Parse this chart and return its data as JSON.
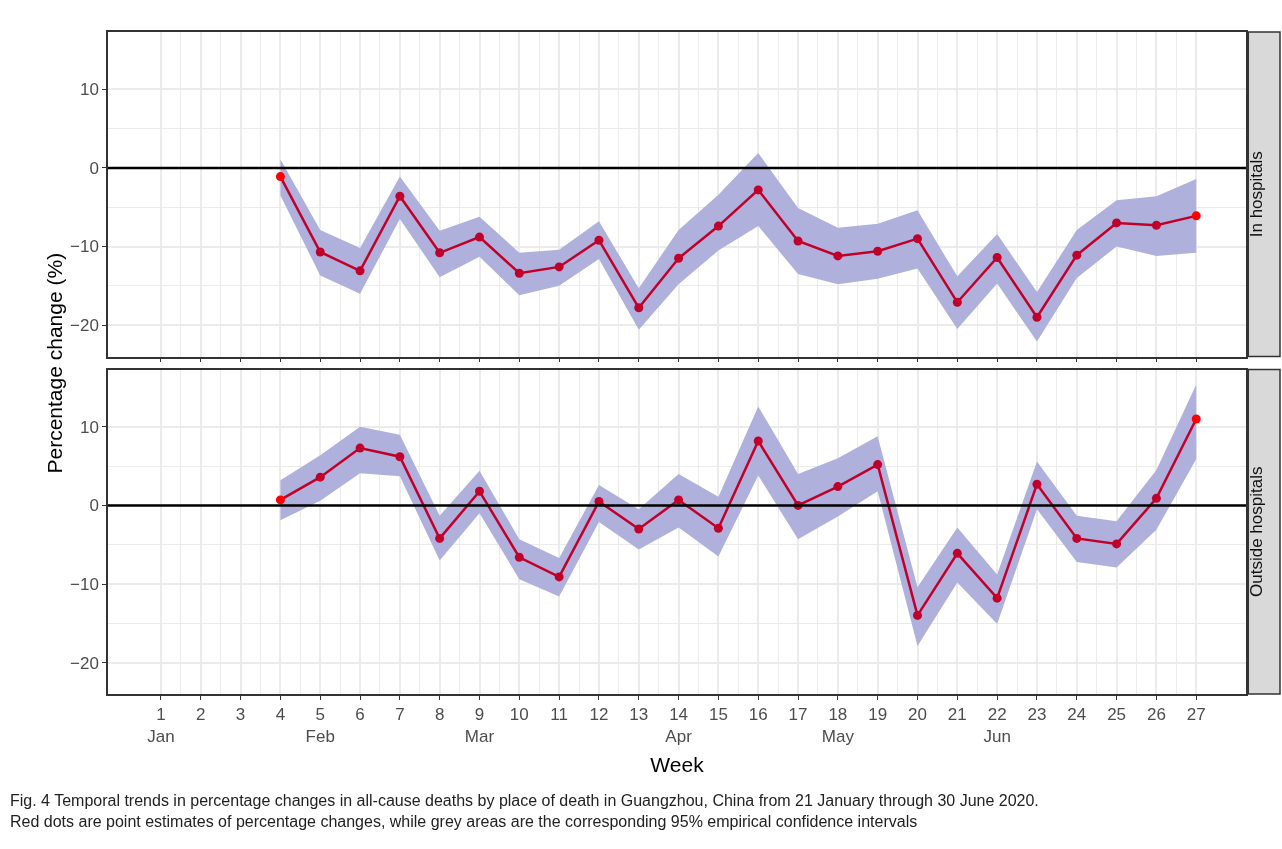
{
  "chart_data": [
    {
      "type": "line",
      "title": "In hospitals",
      "ylabel": "Percentage change (%)",
      "x": [
        4,
        5,
        6,
        7,
        8,
        9,
        10,
        11,
        12,
        13,
        14,
        15,
        16,
        17,
        18,
        19,
        20,
        21,
        22,
        23,
        24,
        25,
        26,
        27
      ],
      "series": [
        {
          "color": "#c0002a",
          "colors": [
            "#ff0000",
            "#c0002a",
            "#c0002a",
            "#c0002a",
            "#c0002a",
            "#c0002a",
            "#c0002a",
            "#c0002a",
            "#c0002a",
            "#c0002a",
            "#c0002a",
            "#c0002a",
            "#c0002a",
            "#c0002a",
            "#c0002a",
            "#c0002a",
            "#c0002a",
            "#c0002a",
            "#c0002a",
            "#c0002a",
            "#c0002a",
            "#c0002a",
            "#c0002a",
            "#ff0000"
          ],
          "values": [
            -1.1,
            -10.7,
            -13.1,
            -3.6,
            -10.8,
            -8.8,
            -13.4,
            -12.6,
            -9.2,
            -17.8,
            -11.5,
            -7.4,
            -2.8,
            -9.3,
            -11.2,
            -10.6,
            -9.0,
            -17.1,
            -11.4,
            -19.0,
            -11.1,
            -7.0,
            -7.3,
            -6.1
          ],
          "lower": [
            -3.5,
            -13.7,
            -16.0,
            -6.5,
            -13.9,
            -11.3,
            -16.2,
            -15.0,
            -11.6,
            -20.6,
            -14.8,
            -10.5,
            -7.4,
            -13.5,
            -14.8,
            -14.1,
            -12.8,
            -20.5,
            -14.7,
            -22.1,
            -14.0,
            -10.0,
            -11.2,
            -10.8
          ],
          "upper": [
            1.1,
            -7.9,
            -10.2,
            -1.1,
            -8.0,
            -6.2,
            -10.8,
            -10.4,
            -6.8,
            -15.3,
            -7.9,
            -3.4,
            1.9,
            -5.1,
            -7.6,
            -7.1,
            -5.4,
            -13.8,
            -8.4,
            -15.8,
            -7.9,
            -4.1,
            -3.6,
            -1.4
          ]
        }
      ],
      "marker": "circle",
      "line_style": "solid",
      "grid": true,
      "tick_labels": "y",
      "xlim": [
        -0.33,
        28.25
      ],
      "xticks": [
        1,
        2,
        3,
        4,
        5,
        6,
        7,
        8,
        9,
        10,
        11,
        12,
        13,
        14,
        15,
        16,
        17,
        18,
        19,
        20,
        21,
        22,
        23,
        24,
        25,
        26,
        27
      ],
      "ylim": [
        -24,
        17.3
      ],
      "yticks": [
        -20,
        -10,
        0,
        10
      ],
      "ref_lines": [
        {
          "axis": "y",
          "value": 0,
          "color": "#000000"
        }
      ]
    },
    {
      "type": "line",
      "title": "Outside hospitals",
      "xlabel": "Week",
      "x": [
        4,
        5,
        6,
        7,
        8,
        9,
        10,
        11,
        12,
        13,
        14,
        15,
        16,
        17,
        18,
        19,
        20,
        21,
        22,
        23,
        24,
        25,
        26,
        27
      ],
      "series": [
        {
          "color": "#c0002a",
          "colors": [
            "#ff0000",
            "#c0002a",
            "#c0002a",
            "#c0002a",
            "#c0002a",
            "#c0002a",
            "#c0002a",
            "#c0002a",
            "#c0002a",
            "#c0002a",
            "#c0002a",
            "#c0002a",
            "#c0002a",
            "#c0002a",
            "#c0002a",
            "#c0002a",
            "#c0002a",
            "#c0002a",
            "#c0002a",
            "#c0002a",
            "#c0002a",
            "#c0002a",
            "#c0002a",
            "#ff0000"
          ],
          "values": [
            0.7,
            3.6,
            7.3,
            6.2,
            -4.2,
            1.8,
            -6.6,
            -9.1,
            0.5,
            -3.0,
            0.7,
            -2.9,
            8.2,
            0.0,
            2.4,
            5.2,
            -14.0,
            -6.1,
            -11.8,
            2.7,
            -4.2,
            -4.9,
            0.9,
            11.0
          ],
          "lower": [
            -1.9,
            0.6,
            4.1,
            3.7,
            -7.0,
            -1.0,
            -9.4,
            -11.6,
            -2.1,
            -5.6,
            -2.8,
            -6.5,
            3.8,
            -4.3,
            -1.4,
            1.8,
            -17.9,
            -9.8,
            -15.1,
            -0.5,
            -7.2,
            -7.9,
            -3.1,
            5.9
          ],
          "upper": [
            3.2,
            6.4,
            10.0,
            9.0,
            -1.3,
            4.4,
            -4.3,
            -6.7,
            2.6,
            -0.5,
            4.0,
            1.1,
            12.6,
            4.0,
            6.0,
            8.8,
            -10.4,
            -2.8,
            -8.8,
            5.6,
            -1.3,
            -2.0,
            4.5,
            15.4
          ]
        }
      ],
      "marker": "circle",
      "line_style": "solid",
      "grid": true,
      "xlim": [
        -0.33,
        28.25
      ],
      "xticks": [
        {
          "value": 1,
          "label": "1\nJan"
        },
        2,
        3,
        4,
        {
          "value": 5,
          "label": "5\nFeb"
        },
        6,
        7,
        8,
        {
          "value": 9,
          "label": "9\nMar"
        },
        10,
        11,
        12,
        13,
        {
          "value": 14,
          "label": "14\nApr"
        },
        15,
        16,
        17,
        {
          "value": 18,
          "label": "18\nMay"
        },
        19,
        20,
        21,
        {
          "value": 22,
          "label": "22\nJun"
        },
        23,
        24,
        25,
        26,
        27
      ],
      "ylim": [
        -24,
        17.3
      ],
      "yticks": [
        -20,
        -10,
        0,
        10
      ],
      "ref_lines": [
        {
          "axis": "y",
          "value": 0,
          "color": "#000000"
        }
      ],
      "annotations": [
        "Fig. 4 Temporal trends in percentage changes in all-cause deaths by place of death in Guangzhou, China from 21 January through 30 June 2020.\nRed dots are point estimates of percentage changes, while grey areas are the corresponding 95% empirical confidence intervals"
      ]
    }
  ]
}
